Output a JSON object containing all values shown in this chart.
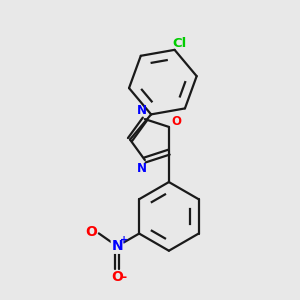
{
  "background_color": "#e8e8e8",
  "bond_color": "#1a1a1a",
  "N_color": "#0000ff",
  "O_color": "#ff0000",
  "Cl_color": "#00cc00",
  "N_label": "N",
  "O_label": "O",
  "Cl_label": "Cl",
  "plus_label": "+",
  "minus_label": "-"
}
